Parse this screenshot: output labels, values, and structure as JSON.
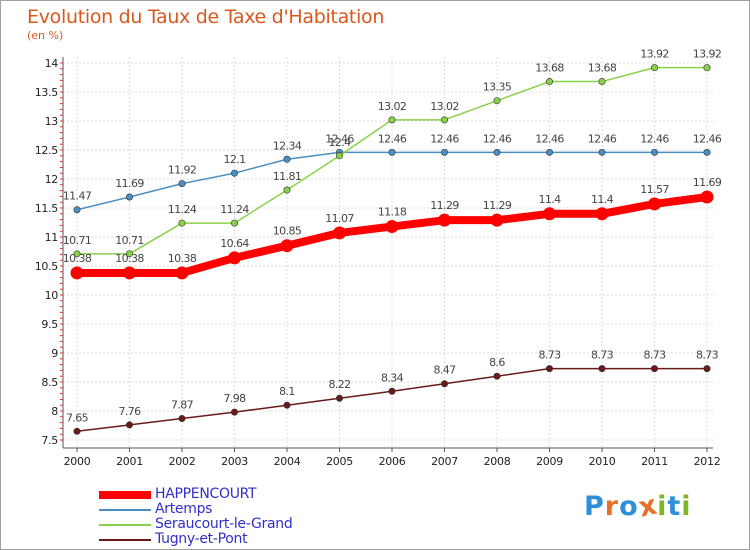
{
  "title": "Evolution du Taux de Taxe d'Habitation",
  "subtitle": "(en %)",
  "logo": {
    "text": "Proxiti",
    "letters": [
      {
        "ch": "P",
        "color": "#2f8fd8"
      },
      {
        "ch": "r",
        "color": "#e8702a"
      },
      {
        "ch": "o",
        "color": "#2f8fd8"
      },
      {
        "ch": "x",
        "color": "#e8702a"
      },
      {
        "ch": "i",
        "color": "#7ab828"
      },
      {
        "ch": "t",
        "color": "#2f8fd8"
      },
      {
        "ch": "i",
        "color": "#7ab828"
      }
    ]
  },
  "chart_data": {
    "type": "line",
    "title": "Evolution du Taux de Taxe d'Habitation",
    "ylabel": "(en %)",
    "x": [
      2000,
      2001,
      2002,
      2003,
      2004,
      2005,
      2006,
      2007,
      2008,
      2009,
      2010,
      2011,
      2012
    ],
    "ylim": [
      7.5,
      14
    ],
    "yticks": [
      7.5,
      8,
      8.5,
      9,
      9.5,
      10,
      10.5,
      11,
      11.5,
      12,
      12.5,
      13,
      13.5,
      14
    ],
    "legend_position": "bottom-left",
    "series": [
      {
        "name": "HAPPENCOURT",
        "color": "#ff0000",
        "emphasis": true,
        "values": [
          10.38,
          10.38,
          10.38,
          10.64,
          10.85,
          11.07,
          11.18,
          11.29,
          11.29,
          11.4,
          11.4,
          11.57,
          11.69
        ]
      },
      {
        "name": "Artemps",
        "color": "#4a8ec2",
        "values": [
          11.47,
          11.69,
          11.92,
          12.1,
          12.34,
          12.46,
          12.46,
          12.46,
          12.46,
          12.46,
          12.46,
          12.46,
          12.46
        ]
      },
      {
        "name": "Seraucourt-le-Grand",
        "color": "#8ad14a",
        "values": [
          10.71,
          10.71,
          11.24,
          11.24,
          11.81,
          12.4,
          13.02,
          13.02,
          13.35,
          13.68,
          13.68,
          13.92,
          13.92
        ]
      },
      {
        "name": "Tugny-et-Pont",
        "color": "#6b1a1a",
        "values": [
          7.65,
          7.76,
          7.87,
          7.98,
          8.1,
          8.22,
          8.34,
          8.47,
          8.6,
          8.73,
          8.73,
          8.73,
          8.73
        ]
      }
    ]
  }
}
